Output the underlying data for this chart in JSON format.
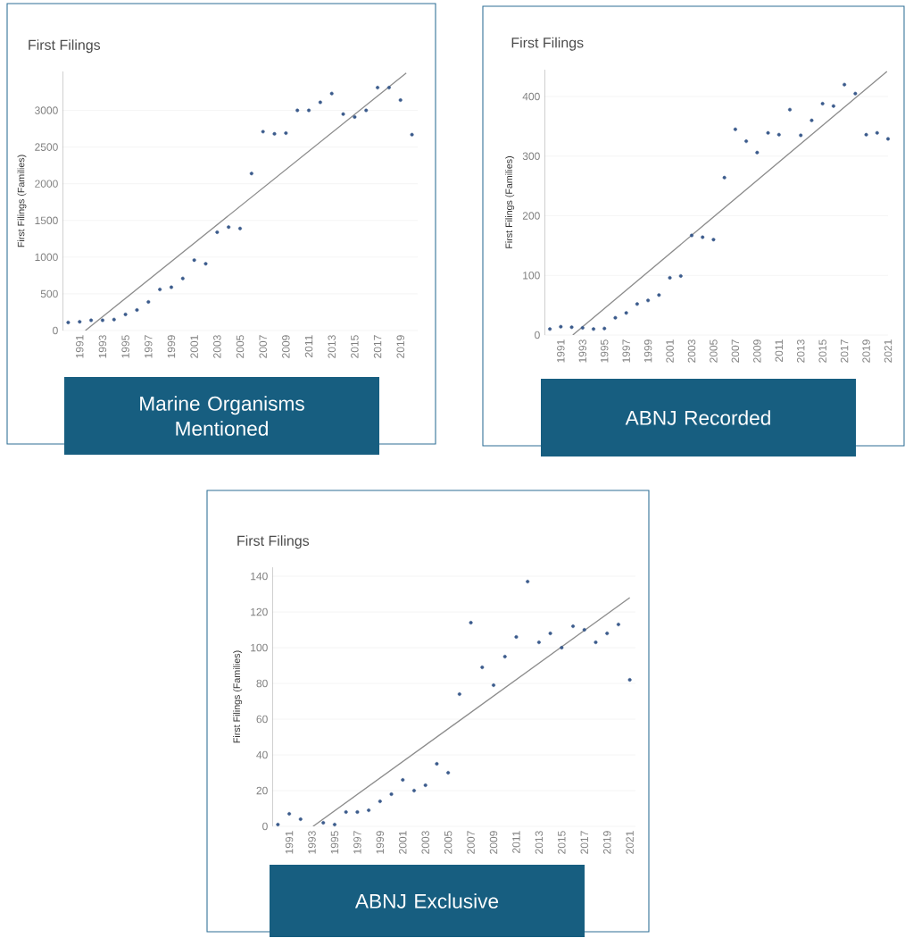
{
  "chart_data": [
    {
      "type": "scatter",
      "title": "First Filings",
      "ylabel": "First Filings (Families)",
      "annotations": [
        "Marine Organisms Mentioned"
      ],
      "x": [
        1990,
        1991,
        1992,
        1993,
        1994,
        1995,
        1996,
        1997,
        1998,
        1999,
        2000,
        2001,
        2002,
        2003,
        2004,
        2005,
        2006,
        2007,
        2008,
        2009,
        2010,
        2011,
        2012,
        2013,
        2014,
        2015,
        2016,
        2017,
        2018,
        2019,
        2020
      ],
      "xlim": [
        1989.5,
        2020.5
      ],
      "xticks": [
        1991,
        1993,
        1995,
        1997,
        1999,
        2001,
        2003,
        2005,
        2007,
        2009,
        2011,
        2013,
        2015,
        2017,
        2019
      ],
      "ylim": [
        0,
        3530
      ],
      "yticks": [
        0,
        500,
        1000,
        1500,
        2000,
        2500,
        3000
      ],
      "grid": "y",
      "series": [
        {
          "color": "#3b5b8c",
          "marker": "circle",
          "values": [
            110,
            120,
            140,
            140,
            150,
            220,
            280,
            390,
            560,
            590,
            710,
            960,
            910,
            1340,
            1410,
            1390,
            2140,
            2710,
            2680,
            2690,
            3000,
            3000,
            3110,
            3230,
            2950,
            2910,
            3000,
            3310,
            3310,
            3140,
            2670
          ]
        },
        {
          "type": "line",
          "color": "#8c8c8c",
          "marker": "none",
          "x": [
            1991.5,
            2019.5
          ],
          "values": [
            0,
            3510
          ]
        }
      ]
    },
    {
      "type": "scatter",
      "title": "First Filings",
      "ylabel": "First Filings (Families)",
      "annotations": [
        "ABNJ Recorded"
      ],
      "x": [
        1990,
        1991,
        1992,
        1993,
        1994,
        1995,
        1996,
        1997,
        1998,
        1999,
        2000,
        2001,
        2002,
        2003,
        2004,
        2005,
        2006,
        2007,
        2008,
        2009,
        2010,
        2011,
        2012,
        2013,
        2014,
        2015,
        2016,
        2017,
        2018,
        2019,
        2020,
        2021
      ],
      "xlim": [
        1989.5,
        2021
      ],
      "xticks": [
        1991,
        1993,
        1995,
        1997,
        1999,
        2001,
        2003,
        2005,
        2007,
        2009,
        2011,
        2013,
        2015,
        2017,
        2019,
        2021
      ],
      "ylim": [
        0,
        445
      ],
      "yticks": [
        0,
        100,
        200,
        300,
        400
      ],
      "grid": "y",
      "series": [
        {
          "color": "#3b5b8c",
          "marker": "circle",
          "values": [
            10,
            14,
            13,
            12,
            10,
            11,
            29,
            37,
            52,
            58,
            67,
            96,
            99,
            167,
            164,
            160,
            264,
            345,
            325,
            306,
            339,
            336,
            378,
            335,
            360,
            388,
            384,
            420,
            405,
            336,
            339,
            329
          ]
        },
        {
          "type": "line",
          "color": "#8c8c8c",
          "marker": "none",
          "x": [
            1992.1,
            2020.9
          ],
          "values": [
            0,
            442
          ]
        }
      ]
    },
    {
      "type": "scatter",
      "title": "First Filings",
      "ylabel": "First Filings (Families)",
      "annotations": [
        "ABNJ Exclusive"
      ],
      "x": [
        1990,
        1991,
        1992,
        1993,
        1994,
        1995,
        1996,
        1997,
        1998,
        1999,
        2000,
        2001,
        2002,
        2003,
        2004,
        2005,
        2006,
        2007,
        2008,
        2009,
        2010,
        2011,
        2012,
        2013,
        2014,
        2015,
        2016,
        2017,
        2018,
        2019,
        2020,
        2021
      ],
      "xlim": [
        1989.5,
        2021.5
      ],
      "xticks": [
        1991,
        1993,
        1995,
        1997,
        1999,
        2001,
        2003,
        2005,
        2007,
        2009,
        2011,
        2013,
        2015,
        2017,
        2019,
        2021
      ],
      "ylim": [
        0,
        145
      ],
      "yticks": [
        0,
        20,
        40,
        60,
        80,
        100,
        120,
        140
      ],
      "grid": "y",
      "series": [
        {
          "color": "#3b5b8c",
          "marker": "circle",
          "values": [
            1,
            7,
            4,
            null,
            2,
            1,
            8,
            8,
            9,
            14,
            18,
            26,
            20,
            23,
            35,
            30,
            74,
            114,
            89,
            79,
            95,
            106,
            137,
            103,
            108,
            100,
            112,
            110,
            103,
            108,
            113,
            82
          ]
        },
        {
          "type": "line",
          "color": "#8c8c8c",
          "marker": "none",
          "x": [
            1993.1,
            2021
          ],
          "values": [
            0,
            128
          ]
        }
      ]
    }
  ]
}
